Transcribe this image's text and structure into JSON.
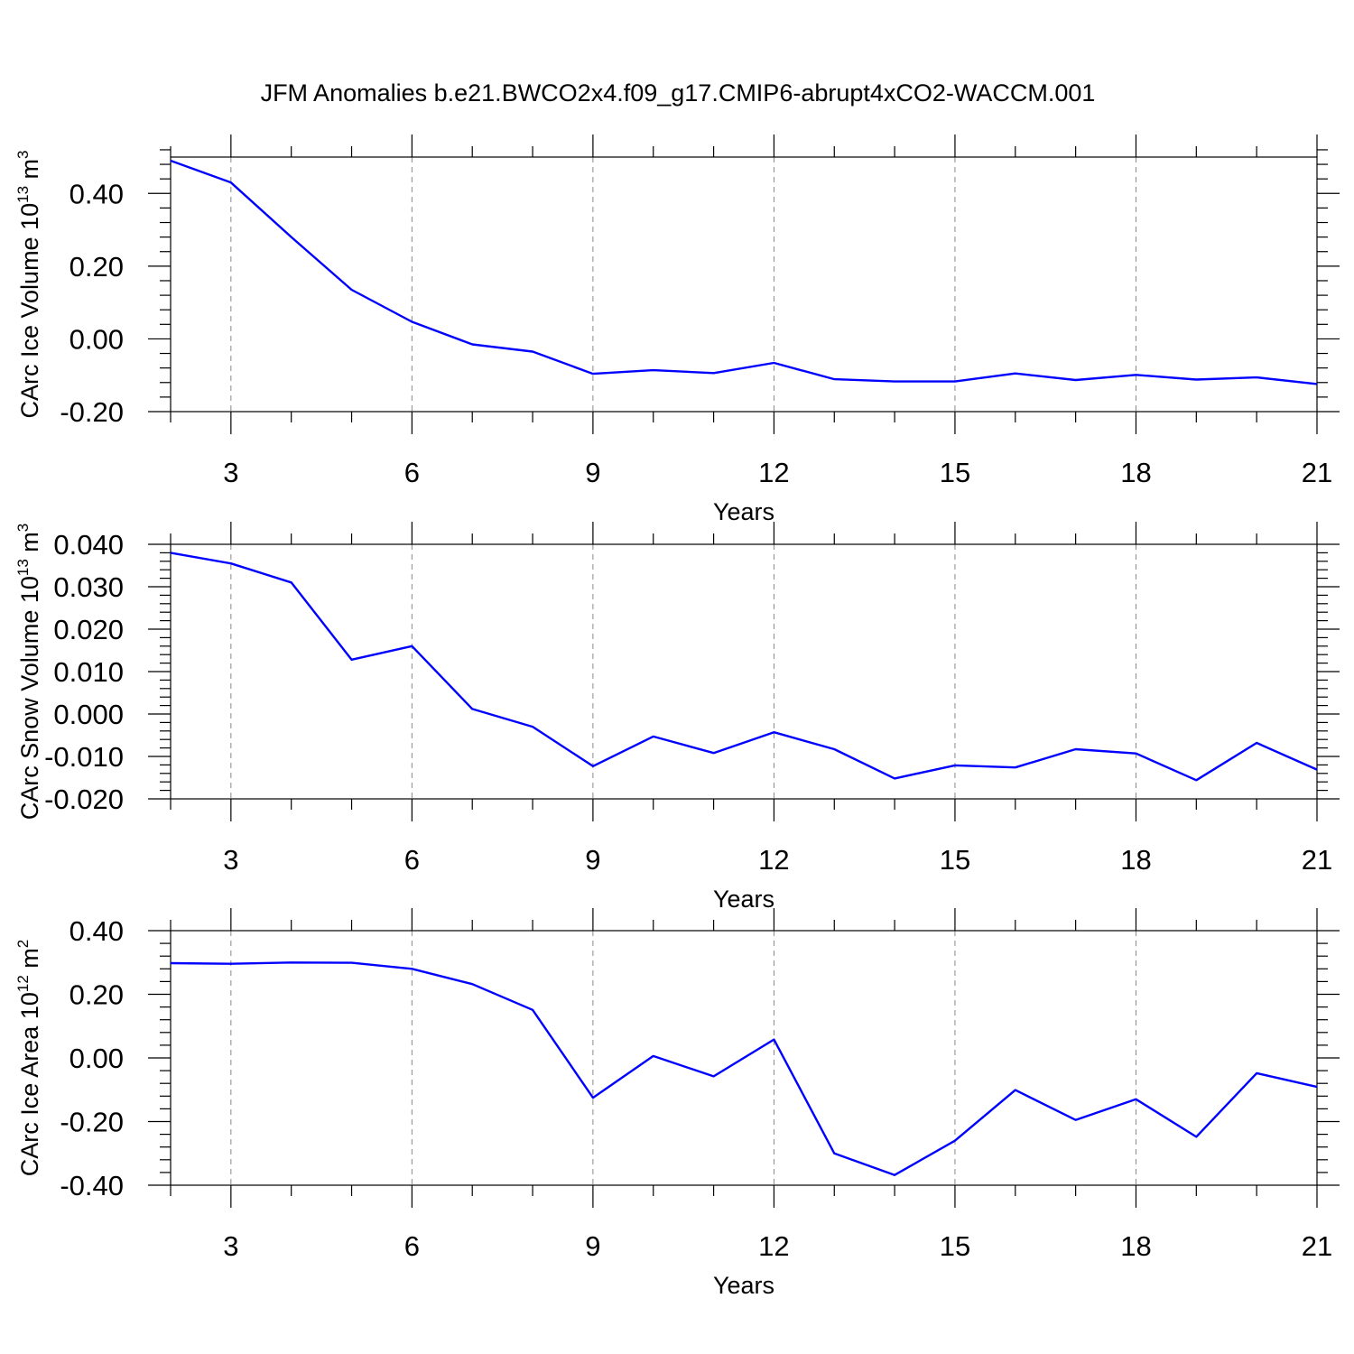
{
  "title": "JFM Anomalies b.e21.BWCO2x4.f09_g17.CMIP6-abrupt4xCO2-WACCM.001",
  "colors": {
    "line": "#0000ff",
    "axis": "#000000",
    "grid": "#888888"
  },
  "chart_data": [
    {
      "type": "line",
      "ylabel": {
        "main": "CArc Ice Volume 10",
        "sup": "13",
        "unit": " m",
        "unit_sup": "3"
      },
      "xlabel": "Years",
      "xlim": [
        2,
        21
      ],
      "ylim": [
        -0.2,
        0.5
      ],
      "xticks": [
        3,
        6,
        9,
        12,
        15,
        18,
        21
      ],
      "xtick_labels": [
        "3",
        "6",
        "9",
        "12",
        "15",
        "18",
        "21"
      ],
      "yticks": [
        -0.2,
        0,
        0.2,
        0.4
      ],
      "ytick_labels": [
        "-0.20",
        "0.00",
        "0.20",
        "0.40"
      ],
      "x": [
        2,
        3,
        4,
        5,
        6,
        7,
        8,
        9,
        10,
        11,
        12,
        13,
        14,
        15,
        16,
        17,
        18,
        19,
        20,
        21
      ],
      "series": [
        {
          "name": "CArc Ice Volume",
          "values": [
            0.49,
            0.43,
            0.28,
            0.135,
            0.047,
            -0.015,
            -0.035,
            -0.096,
            -0.086,
            -0.094,
            -0.066,
            -0.111,
            -0.117,
            -0.117,
            -0.095,
            -0.113,
            -0.099,
            -0.112,
            -0.106,
            -0.124
          ]
        }
      ]
    },
    {
      "type": "line",
      "ylabel": {
        "main": "CArc Snow Volume 10",
        "sup": "13",
        "unit": " m",
        "unit_sup": "3"
      },
      "xlabel": "Years",
      "xlim": [
        2,
        21
      ],
      "ylim": [
        -0.02,
        0.04
      ],
      "xticks": [
        3,
        6,
        9,
        12,
        15,
        18,
        21
      ],
      "xtick_labels": [
        "3",
        "6",
        "9",
        "12",
        "15",
        "18",
        "21"
      ],
      "yticks": [
        -0.02,
        -0.01,
        0,
        0.01,
        0.02,
        0.03,
        0.04
      ],
      "ytick_labels": [
        "-0.020",
        "-0.010",
        "0.000",
        "0.010",
        "0.020",
        "0.030",
        "0.040"
      ],
      "x": [
        2,
        3,
        4,
        5,
        6,
        7,
        8,
        9,
        10,
        11,
        12,
        13,
        14,
        15,
        16,
        17,
        18,
        19,
        20,
        21
      ],
      "series": [
        {
          "name": "CArc Snow Volume",
          "values": [
            0.038,
            0.0355,
            0.031,
            0.0128,
            0.016,
            0.0012,
            -0.003,
            -0.0123,
            -0.0053,
            -0.0092,
            -0.0043,
            -0.0083,
            -0.0152,
            -0.0121,
            -0.0126,
            -0.0083,
            -0.0093,
            -0.0156,
            -0.0068,
            -0.0131
          ]
        }
      ]
    },
    {
      "type": "line",
      "ylabel": {
        "main": "CArc Ice Area 10",
        "sup": "12",
        "unit": " m",
        "unit_sup": "2"
      },
      "xlabel": "Years",
      "xlim": [
        2,
        21
      ],
      "ylim": [
        -0.4,
        0.4
      ],
      "xticks": [
        3,
        6,
        9,
        12,
        15,
        18,
        21
      ],
      "xtick_labels": [
        "3",
        "6",
        "9",
        "12",
        "15",
        "18",
        "21"
      ],
      "yticks": [
        -0.4,
        -0.2,
        0,
        0.2,
        0.4
      ],
      "ytick_labels": [
        "-0.40",
        "-0.20",
        "0.00",
        "0.20",
        "0.40"
      ],
      "x": [
        2,
        3,
        4,
        5,
        6,
        7,
        8,
        9,
        10,
        11,
        12,
        13,
        14,
        15,
        16,
        17,
        18,
        19,
        20,
        21
      ],
      "series": [
        {
          "name": "CArc Ice Area",
          "values": [
            0.298,
            0.296,
            0.3,
            0.299,
            0.28,
            0.232,
            0.151,
            -0.125,
            0.006,
            -0.058,
            0.058,
            -0.3,
            -0.368,
            -0.26,
            -0.101,
            -0.195,
            -0.13,
            -0.248,
            -0.048,
            -0.091
          ]
        }
      ]
    }
  ]
}
